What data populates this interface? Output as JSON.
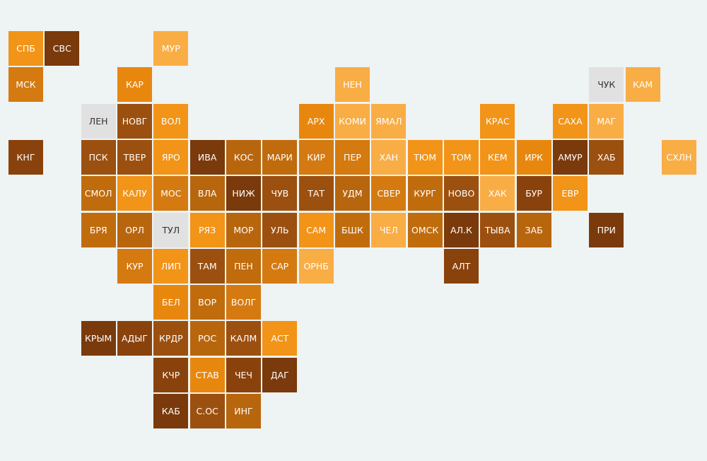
{
  "tiles": [
    {
      "label": "СПБ",
      "color": "#f29418"
    },
    {
      "label": "СВС",
      "color": "#7a3a0b"
    },
    {
      "label": "МУР",
      "color": "#f9ad45"
    },
    {
      "label": "МСК",
      "color": "#d47a10"
    },
    {
      "label": "КАР",
      "color": "#e8870e"
    },
    {
      "label": "НЕН",
      "color": "#f9ad45"
    },
    {
      "label": "ЧУК",
      "color": "#e1e1e1"
    },
    {
      "label": "КАМ",
      "color": "#f9ad45"
    },
    {
      "label": "ЛЕН",
      "color": "#e1e1e1"
    },
    {
      "label": "НОВГ",
      "color": "#9c500f"
    },
    {
      "label": "ВОЛ",
      "color": "#f29418"
    },
    {
      "label": "АРХ",
      "color": "#e8870e"
    },
    {
      "label": "КОМИ",
      "color": "#f9ad45"
    },
    {
      "label": "ЯМАЛ",
      "color": "#f9ad45"
    },
    {
      "label": "КРАС",
      "color": "#f29418"
    },
    {
      "label": "САХА",
      "color": "#f29418"
    },
    {
      "label": "МАГ",
      "color": "#f9ad45"
    },
    {
      "label": "КНГ",
      "color": "#8a420c"
    },
    {
      "label": "ПСК",
      "color": "#9c500f"
    },
    {
      "label": "ТВЕР",
      "color": "#9c500f"
    },
    {
      "label": "ЯРО",
      "color": "#f29418"
    },
    {
      "label": "ИВА",
      "color": "#7a3a0b"
    },
    {
      "label": "КОС",
      "color": "#b8660e"
    },
    {
      "label": "МАРИ",
      "color": "#c06c0d"
    },
    {
      "label": "КИР",
      "color": "#d47a10"
    },
    {
      "label": "ПЕР",
      "color": "#d47a10"
    },
    {
      "label": "ХАН",
      "color": "#f9ad45"
    },
    {
      "label": "ТЮМ",
      "color": "#f29418"
    },
    {
      "label": "ТОМ",
      "color": "#f29418"
    },
    {
      "label": "КЕМ",
      "color": "#f29418"
    },
    {
      "label": "ИРК",
      "color": "#e8870e"
    },
    {
      "label": "АМУР",
      "color": "#7a3a0b"
    },
    {
      "label": "ХАБ",
      "color": "#9c500f"
    },
    {
      "label": "СХЛН",
      "color": "#f9ad45"
    },
    {
      "label": "СМОЛ",
      "color": "#c06c0d"
    },
    {
      "label": "КАЛУ",
      "color": "#f29418"
    },
    {
      "label": "МОС",
      "color": "#d47a10"
    },
    {
      "label": "ВЛА",
      "color": "#b8660e"
    },
    {
      "label": "НИЖ",
      "color": "#7a3a0b"
    },
    {
      "label": "ЧУВ",
      "color": "#9c500f"
    },
    {
      "label": "ТАТ",
      "color": "#9c500f"
    },
    {
      "label": "УДМ",
      "color": "#b8660e"
    },
    {
      "label": "СВЕР",
      "color": "#d47a10"
    },
    {
      "label": "КУРГ",
      "color": "#c06c0d"
    },
    {
      "label": "НОВО",
      "color": "#9c500f"
    },
    {
      "label": "ХАК",
      "color": "#f9ad45"
    },
    {
      "label": "БУР",
      "color": "#8a420c"
    },
    {
      "label": "ЕВР",
      "color": "#f29418"
    },
    {
      "label": "БРЯ",
      "color": "#c06c0d"
    },
    {
      "label": "ОРЛ",
      "color": "#b8660e"
    },
    {
      "label": "ТУЛ",
      "color": "#e1e1e1"
    },
    {
      "label": "РЯЗ",
      "color": "#f29418"
    },
    {
      "label": "МОР",
      "color": "#b8660e"
    },
    {
      "label": "УЛЬ",
      "color": "#9c500f"
    },
    {
      "label": "САМ",
      "color": "#f29418"
    },
    {
      "label": "БШК",
      "color": "#c06c0d"
    },
    {
      "label": "ЧЕЛ",
      "color": "#f9ad45"
    },
    {
      "label": "ОМСК",
      "color": "#c06c0d"
    },
    {
      "label": "АЛ.К",
      "color": "#7a3a0b"
    },
    {
      "label": "ТЫВА",
      "color": "#9c500f"
    },
    {
      "label": "ЗАБ",
      "color": "#b8660e"
    },
    {
      "label": "ПРИ",
      "color": "#7a3a0b"
    },
    {
      "label": "КУР",
      "color": "#d47a10"
    },
    {
      "label": "ЛИП",
      "color": "#f29418"
    },
    {
      "label": "ТАМ",
      "color": "#9c500f"
    },
    {
      "label": "ПЕН",
      "color": "#c06c0d"
    },
    {
      "label": "САР",
      "color": "#d47a10"
    },
    {
      "label": "ОРНБ",
      "color": "#f9ad45"
    },
    {
      "label": "АЛТ",
      "color": "#8a420c"
    },
    {
      "label": "БЕЛ",
      "color": "#e8870e"
    },
    {
      "label": "ВОР",
      "color": "#c06c0d"
    },
    {
      "label": "ВОЛГ",
      "color": "#d47a10"
    },
    {
      "label": "КРЫМ",
      "color": "#7a3a0b"
    },
    {
      "label": "АДЫГ",
      "color": "#8a420c"
    },
    {
      "label": "КРДР",
      "color": "#9c500f"
    },
    {
      "label": "РОС",
      "color": "#b8660e"
    },
    {
      "label": "КАЛМ",
      "color": "#9c500f"
    },
    {
      "label": "АСТ",
      "color": "#f29418"
    },
    {
      "label": "КЧР",
      "color": "#8a420c"
    },
    {
      "label": "СТАВ",
      "color": "#e8870e"
    },
    {
      "label": "ЧЕЧ",
      "color": "#8a420c"
    },
    {
      "label": "ДАГ",
      "color": "#7a3a0b"
    },
    {
      "label": "КАБ",
      "color": "#7a3a0b"
    },
    {
      "label": "С.ОС",
      "color": "#9c500f"
    },
    {
      "label": "ИНГ",
      "color": "#b8660e"
    }
  ]
}
